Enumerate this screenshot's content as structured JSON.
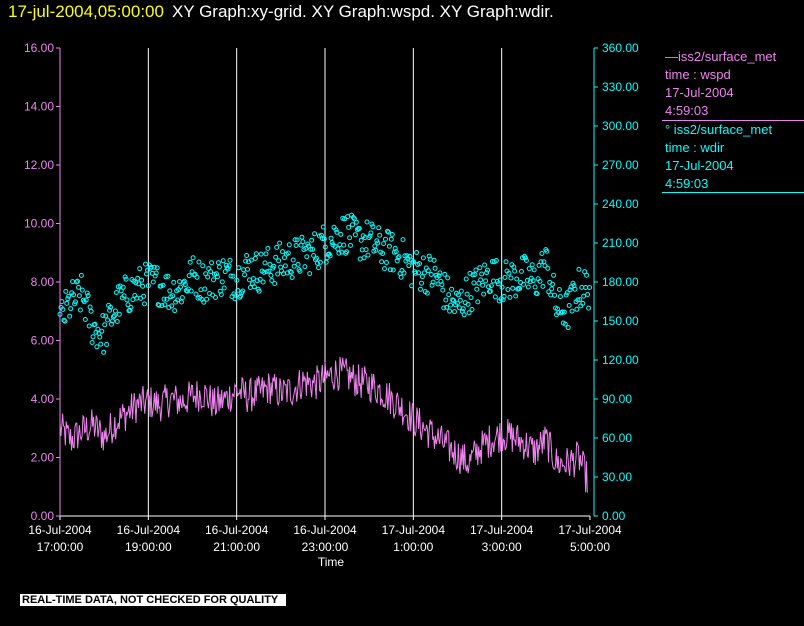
{
  "header": {
    "datetime": "17-jul-2004,05:00:00",
    "graphs": "XY Graph:xy-grid.  XY Graph:wspd.  XY Graph:wdir."
  },
  "legend": [
    {
      "line1": "—iss2/surface_met",
      "line2": "time : wspd",
      "line3": "17-Jul-2004",
      "line4": "4:59:03",
      "color": "#ee82ee"
    },
    {
      "line1": "° iss2/surface_met",
      "line2": "time : wdir",
      "line3": "17-Jul-2004",
      "line4": "4:59:03",
      "color": "#00ffff"
    }
  ],
  "disclaimer": "REAL-TIME DATA, NOT CHECKED FOR QUALITY",
  "colors": {
    "wspd": "#ee82ee",
    "wdir": "#00ffff",
    "grid": "#ffffff",
    "title": "#ffff00"
  },
  "chart_data": {
    "type": "line",
    "xlabel": "Time",
    "x_ticks": [
      {
        "date": "16-Jul-2004",
        "time": "17:00:00",
        "h": 0
      },
      {
        "date": "16-Jul-2004",
        "time": "19:00:00",
        "h": 2
      },
      {
        "date": "16-Jul-2004",
        "time": "21:00:00",
        "h": 4
      },
      {
        "date": "16-Jul-2004",
        "time": "23:00:00",
        "h": 6
      },
      {
        "date": "17-Jul-2004",
        "time": "1:00:00",
        "h": 8
      },
      {
        "date": "17-Jul-2004",
        "time": "3:00:00",
        "h": 10
      },
      {
        "date": "17-Jul-2004",
        "time": "5:00:00",
        "h": 12
      }
    ],
    "y_left": {
      "series": "wspd",
      "ylim": [
        0,
        16
      ],
      "ticks": [
        "0.00",
        "2.00",
        "4.00",
        "6.00",
        "8.00",
        "10.00",
        "12.00",
        "14.00",
        "16.00"
      ]
    },
    "y_right": {
      "series": "wdir",
      "ylim": [
        0,
        360
      ],
      "ticks": [
        "0.00",
        "30.00",
        "60.00",
        "90.00",
        "120.00",
        "150.00",
        "180.00",
        "210.00",
        "240.00",
        "270.00",
        "300.00",
        "330.00",
        "360.00"
      ]
    },
    "series": [
      {
        "name": "iss2/surface_met time : wspd",
        "style": "line",
        "x_unit": "hours since 16-Jul-2004 17:00:00",
        "x": [
          0,
          0.25,
          0.5,
          0.75,
          1,
          1.25,
          1.5,
          1.75,
          2,
          2.25,
          2.5,
          2.75,
          3,
          3.25,
          3.5,
          3.75,
          4,
          4.25,
          4.5,
          4.75,
          5,
          5.25,
          5.5,
          5.75,
          6,
          6.25,
          6.5,
          6.75,
          7,
          7.25,
          7.5,
          7.75,
          8,
          8.25,
          8.5,
          8.75,
          9,
          9.25,
          9.5,
          9.75,
          10,
          10.25,
          10.5,
          10.75,
          11,
          11.25,
          11.5,
          11.75,
          11.95
        ],
        "values": [
          3.0,
          2.6,
          2.9,
          3.1,
          2.7,
          3.2,
          3.5,
          3.8,
          3.9,
          3.8,
          4.0,
          3.9,
          4.1,
          4.2,
          3.8,
          4.0,
          4.3,
          4.1,
          4.2,
          4.4,
          4.2,
          4.3,
          4.6,
          4.5,
          4.7,
          4.9,
          4.8,
          4.6,
          4.5,
          4.3,
          4.0,
          3.7,
          3.3,
          3.0,
          2.7,
          2.4,
          2.1,
          1.8,
          2.3,
          2.6,
          2.8,
          2.7,
          2.5,
          2.2,
          2.6,
          1.8,
          1.8,
          2.0,
          1.2
        ],
        "jitter": 0.6
      },
      {
        "name": "iss2/surface_met time : wdir",
        "style": "scatter",
        "x_unit": "hours since 16-Jul-2004 17:00:00",
        "x": [
          0,
          0.25,
          0.5,
          0.75,
          1,
          1.25,
          1.5,
          1.75,
          2,
          2.25,
          2.5,
          2.75,
          3,
          3.25,
          3.5,
          3.75,
          4,
          4.25,
          4.5,
          4.75,
          5,
          5.25,
          5.5,
          5.75,
          6,
          6.25,
          6.5,
          6.75,
          7,
          7.25,
          7.5,
          7.75,
          8,
          8.25,
          8.5,
          8.75,
          9,
          9.25,
          9.5,
          9.75,
          10,
          10.25,
          10.5,
          10.75,
          11,
          11.25,
          11.5,
          11.75,
          12
        ],
        "values": [
          150,
          165,
          170,
          145,
          140,
          160,
          170,
          175,
          180,
          178,
          172,
          175,
          185,
          180,
          183,
          186,
          182,
          190,
          188,
          192,
          195,
          198,
          200,
          203,
          210,
          215,
          218,
          212,
          212,
          206,
          203,
          198,
          190,
          188,
          185,
          170,
          160,
          172,
          178,
          186,
          180,
          182,
          185,
          180,
          195,
          160,
          158,
          175,
          175
        ],
        "jitter": 16
      }
    ]
  }
}
